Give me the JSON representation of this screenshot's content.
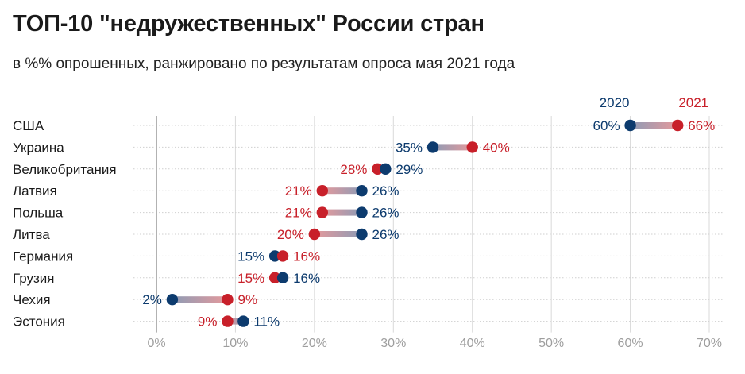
{
  "title": "ТОП-10 \"недружественных\" России стран",
  "subtitle": "в %% опрошенных, ранжировано по результатам опроса мая 2021 года",
  "colors": {
    "y2020": "#0d3b6e",
    "y2021": "#c8202a",
    "grid": "#d9d9d9",
    "axis": "#999999",
    "tick": "#9e9e9e",
    "label": "#1a1a1a"
  },
  "chart_data": {
    "type": "dumbbell",
    "series": [
      {
        "name": "2020",
        "values": [
          60,
          35,
          29,
          26,
          26,
          26,
          15,
          16,
          2,
          11
        ]
      },
      {
        "name": "2021",
        "values": [
          66,
          40,
          28,
          21,
          21,
          20,
          16,
          15,
          9,
          9
        ]
      }
    ],
    "categories": [
      "США",
      "Украина",
      "Великобритания",
      "Латвия",
      "Польша",
      "Литва",
      "Германия",
      "Грузия",
      "Чехия",
      "Эстония"
    ],
    "xlim": [
      0,
      70
    ],
    "xticks": [
      0,
      10,
      20,
      30,
      40,
      50,
      60,
      70
    ],
    "tick_suffix": "%",
    "value_suffix": "%",
    "legend": "labels above top row",
    "grid": true
  }
}
